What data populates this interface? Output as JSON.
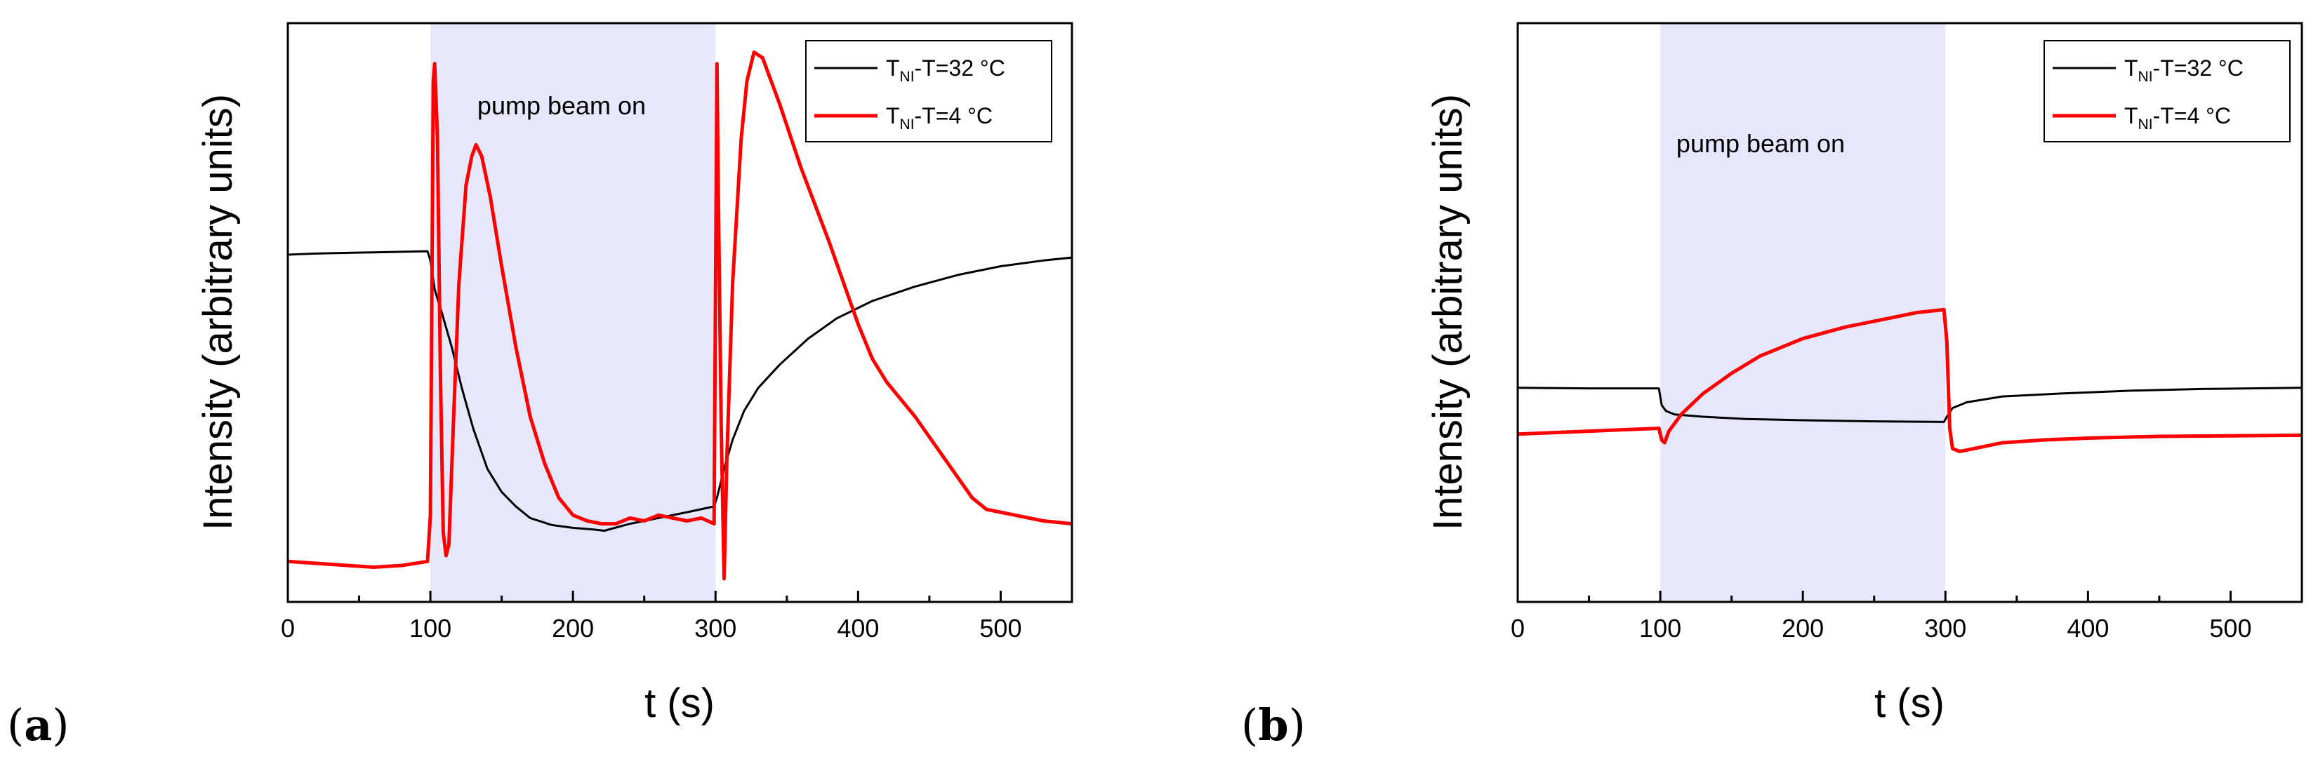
{
  "figure": {
    "panels": [
      {
        "letter_open": "(",
        "letter": "a",
        "letter_close": ")"
      },
      {
        "letter_open": "(",
        "letter": "b",
        "letter_close": ")"
      }
    ]
  },
  "chart_data": [
    {
      "type": "line",
      "panel": "(a)",
      "xlabel": "t (s)",
      "ylabel": "Intensity (arbitrary units)",
      "xlim": [
        0,
        550
      ],
      "ylim": [
        0,
        100
      ],
      "xticks": [
        0,
        100,
        200,
        300,
        400,
        500
      ],
      "xtick_labels": [
        "0",
        "100",
        "200",
        "300",
        "400",
        "500"
      ],
      "grid": false,
      "shaded_region": {
        "x_start": 100,
        "x_end": 300,
        "color": "#e7e7fb",
        "label": "pump beam on"
      },
      "legend": {
        "position": "top-right",
        "entries": [
          {
            "main": "T",
            "sub": "NI",
            "rest": "-T=32 °C",
            "color": "#000000"
          },
          {
            "main": "T",
            "sub": "NI",
            "rest": "-T=4 °C",
            "color": "#ff0000"
          }
        ]
      },
      "series": [
        {
          "name": "TNI-T=32 °C",
          "color": "#000000",
          "width": 3,
          "points": [
            [
              0,
              60
            ],
            [
              20,
              60.2
            ],
            [
              40,
              60.3
            ],
            [
              60,
              60.4
            ],
            [
              80,
              60.5
            ],
            [
              98,
              60.6
            ],
            [
              100,
              59
            ],
            [
              103,
              54
            ],
            [
              108,
              50
            ],
            [
              115,
              44
            ],
            [
              122,
              37
            ],
            [
              130,
              30
            ],
            [
              140,
              23
            ],
            [
              150,
              19
            ],
            [
              160,
              16.5
            ],
            [
              170,
              14.5
            ],
            [
              185,
              13.3
            ],
            [
              200,
              12.8
            ],
            [
              215,
              12.5
            ],
            [
              222,
              12.3
            ],
            [
              240,
              13.5
            ],
            [
              260,
              14.5
            ],
            [
              280,
              15.5
            ],
            [
              299,
              16.5
            ],
            [
              301,
              18
            ],
            [
              306,
              23
            ],
            [
              312,
              28
            ],
            [
              320,
              33
            ],
            [
              330,
              37
            ],
            [
              345,
              41
            ],
            [
              365,
              45.5
            ],
            [
              385,
              49
            ],
            [
              410,
              52
            ],
            [
              440,
              54.5
            ],
            [
              470,
              56.5
            ],
            [
              500,
              58
            ],
            [
              530,
              59
            ],
            [
              550,
              59.5
            ]
          ]
        },
        {
          "name": "TNI-T=4 °C",
          "color": "#ff0000",
          "width": 5,
          "points": [
            [
              0,
              7
            ],
            [
              30,
              6.5
            ],
            [
              60,
              6
            ],
            [
              80,
              6.3
            ],
            [
              98,
              7
            ],
            [
              100,
              15
            ],
            [
              102,
              90
            ],
            [
              103,
              93
            ],
            [
              105,
              80
            ],
            [
              107,
              40
            ],
            [
              109,
              12
            ],
            [
              111,
              8
            ],
            [
              113,
              10
            ],
            [
              116,
              30
            ],
            [
              120,
              55
            ],
            [
              125,
              72
            ],
            [
              129,
              77
            ],
            [
              132,
              79
            ],
            [
              136,
              77
            ],
            [
              142,
              70
            ],
            [
              150,
              58
            ],
            [
              160,
              44
            ],
            [
              170,
              32
            ],
            [
              180,
              24
            ],
            [
              190,
              18
            ],
            [
              200,
              15
            ],
            [
              210,
              14
            ],
            [
              220,
              13.5
            ],
            [
              230,
              13.5
            ],
            [
              240,
              14.5
            ],
            [
              250,
              14
            ],
            [
              260,
              15
            ],
            [
              270,
              14.5
            ],
            [
              280,
              14
            ],
            [
              290,
              14.5
            ],
            [
              299,
              13.5
            ],
            [
              301,
              93
            ],
            [
              302,
              70
            ],
            [
              304,
              30
            ],
            [
              306,
              4
            ],
            [
              308,
              25
            ],
            [
              312,
              55
            ],
            [
              318,
              80
            ],
            [
              322,
              90
            ],
            [
              327,
              95
            ],
            [
              333,
              94
            ],
            [
              345,
              86
            ],
            [
              360,
              75
            ],
            [
              380,
              62
            ],
            [
              400,
              48
            ],
            [
              410,
              42
            ],
            [
              420,
              38
            ],
            [
              440,
              32
            ],
            [
              460,
              25
            ],
            [
              480,
              18
            ],
            [
              490,
              16
            ],
            [
              510,
              15
            ],
            [
              530,
              14
            ],
            [
              550,
              13.5
            ]
          ]
        }
      ]
    },
    {
      "type": "line",
      "panel": "(b)",
      "xlabel": "t (s)",
      "ylabel": "Intensity (arbitrary units)",
      "xlim": [
        0,
        550
      ],
      "ylim": [
        0,
        100
      ],
      "xticks": [
        0,
        100,
        200,
        300,
        400,
        500
      ],
      "xtick_labels": [
        "0",
        "100",
        "200",
        "300",
        "400",
        "500"
      ],
      "grid": false,
      "shaded_region": {
        "x_start": 100,
        "x_end": 300,
        "color": "#e7e7fb",
        "label": "pump beam on"
      },
      "legend": {
        "position": "top-right",
        "entries": [
          {
            "main": "T",
            "sub": "NI",
            "rest": "-T=32 °C",
            "color": "#000000"
          },
          {
            "main": "T",
            "sub": "NI",
            "rest": "-T=4 °C",
            "color": "#ff0000"
          }
        ]
      },
      "series": [
        {
          "name": "TNI-T=32 °C",
          "color": "#000000",
          "width": 3,
          "points": [
            [
              0,
              37
            ],
            [
              50,
              36.9
            ],
            [
              99,
              36.9
            ],
            [
              101,
              34
            ],
            [
              104,
              33
            ],
            [
              110,
              32.4
            ],
            [
              130,
              32
            ],
            [
              160,
              31.6
            ],
            [
              200,
              31.4
            ],
            [
              250,
              31.2
            ],
            [
              299,
              31.1
            ],
            [
              301,
              32
            ],
            [
              305,
              33.5
            ],
            [
              315,
              34.5
            ],
            [
              340,
              35.5
            ],
            [
              380,
              36
            ],
            [
              430,
              36.5
            ],
            [
              480,
              36.8
            ],
            [
              550,
              37
            ]
          ]
        },
        {
          "name": "TNI-T=4 °C",
          "color": "#ff0000",
          "width": 5,
          "points": [
            [
              0,
              29
            ],
            [
              50,
              29.5
            ],
            [
              99,
              30
            ],
            [
              101,
              28
            ],
            [
              103,
              27.5
            ],
            [
              106,
              29.5
            ],
            [
              115,
              32.5
            ],
            [
              130,
              36
            ],
            [
              150,
              39.5
            ],
            [
              170,
              42.5
            ],
            [
              200,
              45.5
            ],
            [
              230,
              47.5
            ],
            [
              260,
              49
            ],
            [
              280,
              50
            ],
            [
              299,
              50.5
            ],
            [
              301,
              45
            ],
            [
              303,
              30
            ],
            [
              305,
              26.5
            ],
            [
              310,
              26
            ],
            [
              320,
              26.5
            ],
            [
              340,
              27.5
            ],
            [
              370,
              28
            ],
            [
              400,
              28.3
            ],
            [
              450,
              28.6
            ],
            [
              500,
              28.7
            ],
            [
              550,
              28.8
            ]
          ]
        }
      ]
    }
  ]
}
